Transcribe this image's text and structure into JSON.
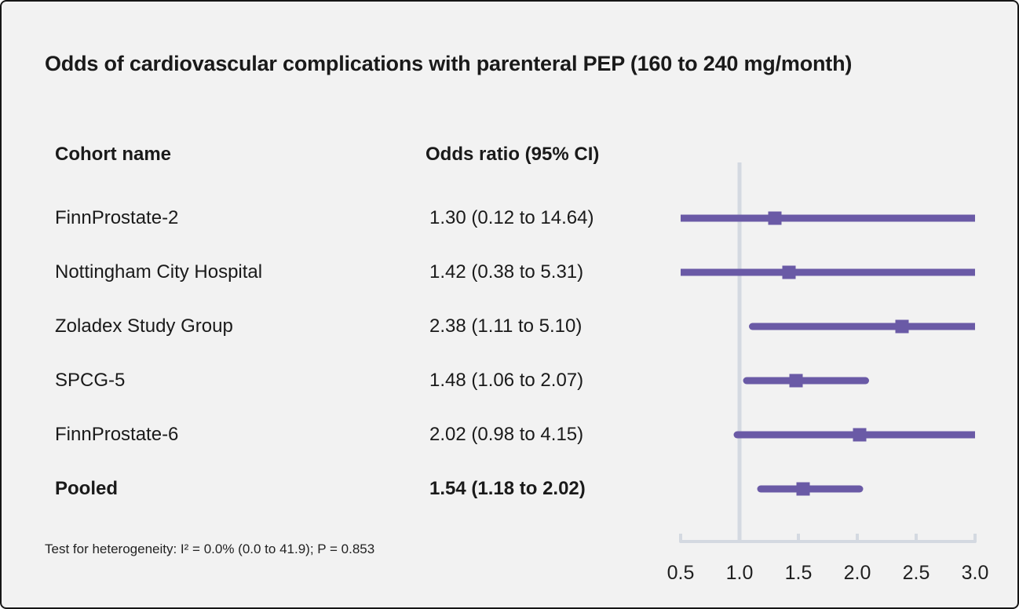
{
  "title": "Odds of cardiovascular complications with parenteral PEP (160 to 240 mg/month)",
  "table": {
    "cohort_header": "Cohort name",
    "or_header": "Odds ratio (95% CI)"
  },
  "footnote": "Test for heterogeneity: I² = 0.0% (0.0 to 41.9); P = 0.853",
  "colors": {
    "marker": "#6a5aa6",
    "axis_line": "#d4d9e1",
    "background": "#f2f2f2",
    "text": "#1a1a1a",
    "border": "#161616"
  },
  "chart_data": {
    "type": "forest",
    "title": "Odds of cardiovascular complications with parenteral PEP (160 to 240 mg/month)",
    "xlabel": "",
    "ylabel": "",
    "xlim": [
      0.5,
      3.0
    ],
    "x_ticks": [
      0.5,
      1.0,
      1.5,
      2.0,
      2.5,
      3.0
    ],
    "reference_line": 1.0,
    "grid": false,
    "legend": "none",
    "rows": [
      {
        "label": "FinnProstate-2",
        "or": 1.3,
        "ci_low": 0.12,
        "ci_high": 14.64,
        "or_text": "1.30 (0.12 to 14.64)",
        "bold": false
      },
      {
        "label": "Nottingham City Hospital",
        "or": 1.42,
        "ci_low": 0.38,
        "ci_high": 5.31,
        "or_text": "1.42 (0.38 to 5.31)",
        "bold": false
      },
      {
        "label": "Zoladex Study Group",
        "or": 2.38,
        "ci_low": 1.11,
        "ci_high": 5.1,
        "or_text": "2.38 (1.11 to 5.10)",
        "bold": false
      },
      {
        "label": "SPCG-5",
        "or": 1.48,
        "ci_low": 1.06,
        "ci_high": 2.07,
        "or_text": "1.48 (1.06 to 2.07)",
        "bold": false
      },
      {
        "label": "FinnProstate-6",
        "or": 2.02,
        "ci_low": 0.98,
        "ci_high": 4.15,
        "or_text": "2.02 (0.98 to 4.15)",
        "bold": false
      },
      {
        "label": "Pooled",
        "or": 1.54,
        "ci_low": 1.18,
        "ci_high": 2.02,
        "or_text": "1.54 (1.18 to 2.02)",
        "bold": true
      }
    ]
  }
}
